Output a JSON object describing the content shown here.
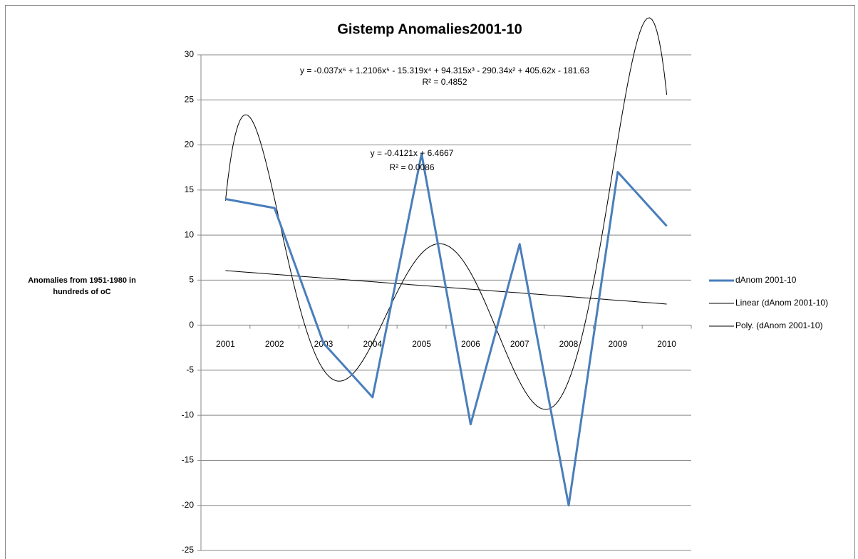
{
  "chart_data": {
    "type": "line",
    "title": "Gistemp Anomalies2001-10",
    "y_label": [
      "Anomalies from 1951-1980 in",
      "hundreds of oC"
    ],
    "categories": [
      "2001",
      "2002",
      "2003",
      "2004",
      "2005",
      "2006",
      "2007",
      "2008",
      "2009",
      "2010"
    ],
    "series": [
      {
        "name": "dAnom 2001-10",
        "color": "#4a7ebb",
        "values": [
          14,
          13,
          -2,
          -8,
          19,
          -11,
          9,
          -20,
          17,
          11
        ]
      }
    ],
    "trendlines": [
      {
        "name": "Linear (dAnom 2001-10)",
        "kind": "linear",
        "color": "#000000",
        "coefficients": [
          -0.4121,
          6.4667
        ],
        "equation": "y = -0.4121x + 6.4667",
        "r_squared": 0.0086,
        "r_squared_label": "R² = 0.0086"
      },
      {
        "name": "Poly. (dAnom 2001-10)",
        "kind": "polynomial",
        "color": "#000000",
        "coefficients": [
          -0.037,
          1.2106,
          -15.319,
          94.315,
          -290.34,
          405.62,
          -181.63
        ],
        "equation": "y = -0.037x⁶ + 1.2106x⁵ - 15.319x⁴ + 94.315x³ - 290.34x² + 405.62x - 181.63",
        "r_squared": 0.4852,
        "r_squared_label": "R² = 0.4852"
      }
    ],
    "ylim": [
      -25,
      30
    ],
    "yticks": [
      -25,
      -20,
      -15,
      -10,
      -5,
      0,
      5,
      10,
      15,
      20,
      25,
      30
    ],
    "grid": true,
    "legend": "right"
  }
}
